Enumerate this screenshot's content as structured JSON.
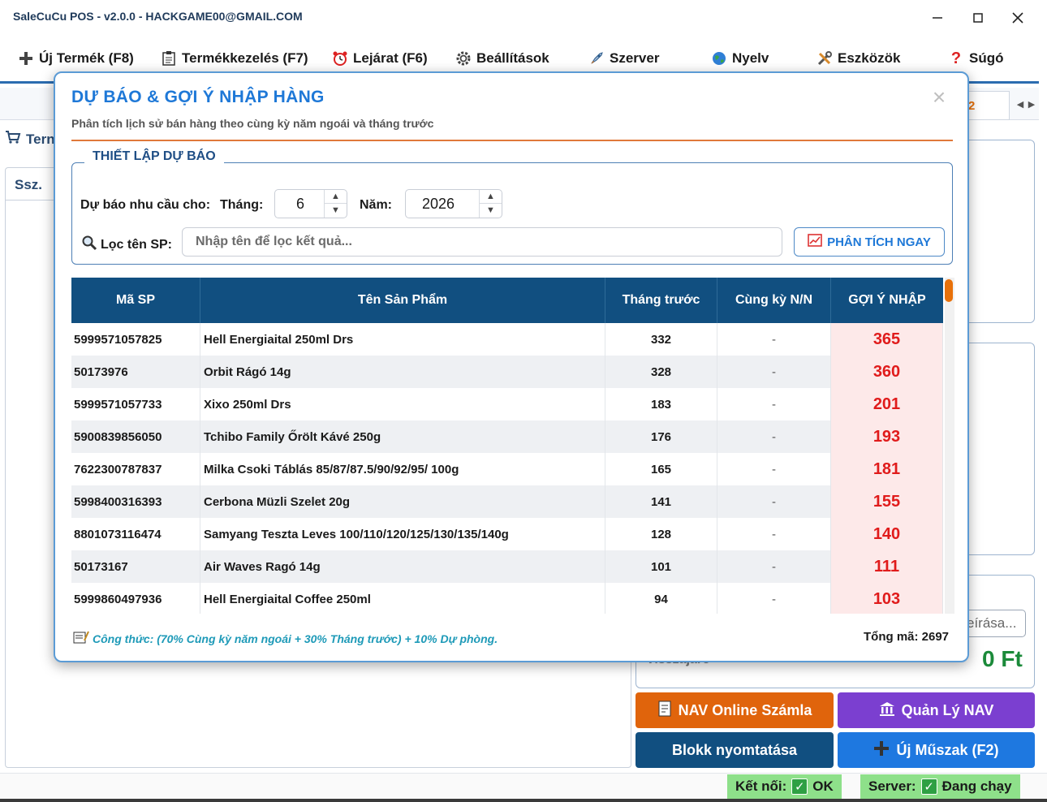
{
  "window": {
    "title": "SaleCuCu POS - v2.0.0 - HACKGAME00@GMAIL.COM"
  },
  "menu": {
    "items": [
      {
        "label": "Új Termék (F8)"
      },
      {
        "label": "Termékkezelés (F7)"
      },
      {
        "label": "Lejárat (F6)"
      },
      {
        "label": "Beállítások"
      },
      {
        "label": "Szerver"
      },
      {
        "label": "Nyelv"
      },
      {
        "label": "Eszközök"
      },
      {
        "label": "Súgó"
      }
    ]
  },
  "background": {
    "tab_right_text": "2",
    "left_tab_label": "Tern",
    "col_header": "Ssz.",
    "note_button": "eírása...",
    "visszajaro": "Visszajáró",
    "total": "0 Ft",
    "buttons": {
      "nav_online": "NAV Online Számla",
      "quan_ly_nav": "Quản Lý NAV",
      "blokk": "Blokk nyomtatása",
      "uj_muszak": "Új Műszak (F2)"
    },
    "colors": {
      "nav_online": "#e0640c",
      "quan_ly_nav": "#7b3fd0",
      "blokk": "#114f80",
      "uj_muszak": "#1e78e0"
    }
  },
  "status": {
    "connection_label": "Kết nối:",
    "connection_value": "OK",
    "server_label": "Server:",
    "server_value": "Đang chạy"
  },
  "dialog": {
    "title": "DỰ BÁO & GỢI Ý NHẬP HÀNG",
    "subtitle": "Phân tích lịch sử bán hàng theo cùng kỳ năm ngoái và tháng trước",
    "close": "×",
    "group_title": "THIẾT LẬP DỰ BÁO",
    "forecast_label": "Dự báo nhu cầu cho:",
    "month_label": "Tháng:",
    "month_value": "6",
    "year_label": "Năm:",
    "year_value": "2026",
    "filter_label": "Lọc tên SP:",
    "filter_placeholder": "Nhập tên để lọc kết quả...",
    "analyze_button": "PHÂN TÍCH NGAY",
    "columns": [
      "Mã SP",
      "Tên Sản Phẩm",
      "Tháng trước",
      "Cùng kỳ N/N",
      "GỢI Ý NHẬP"
    ],
    "rows": [
      {
        "code": "5999571057825",
        "name": "Hell Energiaital 250ml Drs",
        "last_month": "332",
        "same_period": "-",
        "suggest": "365"
      },
      {
        "code": "50173976",
        "name": "Orbit Rágó 14g",
        "last_month": "328",
        "same_period": "-",
        "suggest": "360"
      },
      {
        "code": "5999571057733",
        "name": "Xixo 250ml Drs",
        "last_month": "183",
        "same_period": "-",
        "suggest": "201"
      },
      {
        "code": "5900839856050",
        "name": "Tchibo Family Őrölt Kávé 250g",
        "last_month": "176",
        "same_period": "-",
        "suggest": "193"
      },
      {
        "code": "7622300787837",
        "name": "Milka Csoki Táblás 85/87/87.5/90/92/95/ 100g",
        "last_month": "165",
        "same_period": "-",
        "suggest": "181"
      },
      {
        "code": "5998400316393",
        "name": "Cerbona Müzli Szelet 20g",
        "last_month": "141",
        "same_period": "-",
        "suggest": "155"
      },
      {
        "code": "8801073116474",
        "name": "Samyang Teszta Leves 100/110/120/125/130/135/140g",
        "last_month": "128",
        "same_period": "-",
        "suggest": "140"
      },
      {
        "code": "50173167",
        "name": "Air Waves Ragó 14g",
        "last_month": "101",
        "same_period": "-",
        "suggest": "111"
      },
      {
        "code": "5999860497936",
        "name": "Hell Energiaital Coffee 250ml",
        "last_month": "94",
        "same_period": "-",
        "suggest": "103"
      }
    ],
    "formula": "Công thức: (70% Cùng kỳ năm ngoái + 30% Tháng trước) + 10% Dự phòng.",
    "total_codes": "Tổng mã: 2697"
  }
}
